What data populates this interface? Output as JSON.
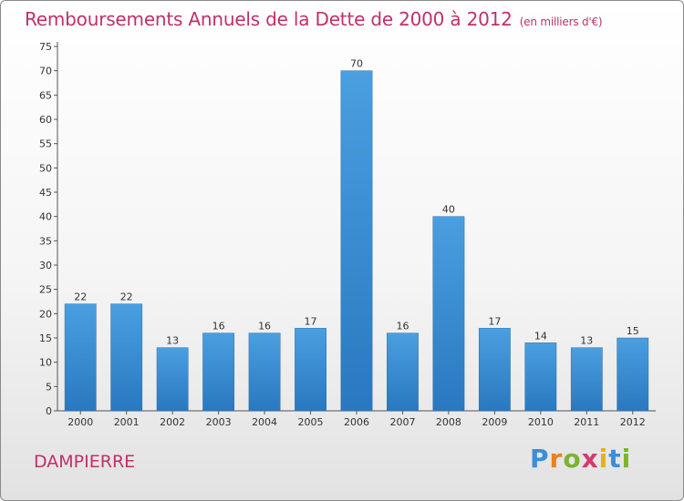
{
  "title": "Remboursements Annuels de la Dette de 2000 à 2012",
  "unit": "(en milliers d'€)",
  "commune": "DAMPIERRE",
  "logo": {
    "letters": [
      "P",
      "r",
      "o",
      "x",
      "i",
      "t",
      "i"
    ],
    "colors": [
      "#3a8fd8",
      "#e8801e",
      "#7cb32e",
      "#d43a6a",
      "#e0b31e",
      "#3a8fd8",
      "#7cb32e"
    ]
  },
  "chart_data": {
    "type": "bar",
    "title": "Remboursements Annuels de la Dette de 2000 à 2012",
    "xlabel": "",
    "ylabel": "",
    "categories": [
      "2000",
      "2001",
      "2002",
      "2003",
      "2004",
      "2005",
      "2006",
      "2007",
      "2008",
      "2009",
      "2010",
      "2011",
      "2012"
    ],
    "values": [
      22,
      22,
      13,
      16,
      16,
      17,
      70,
      16,
      40,
      17,
      14,
      13,
      15
    ],
    "ylim": [
      0,
      75
    ],
    "yticks": [
      0,
      5,
      10,
      15,
      20,
      25,
      30,
      35,
      40,
      45,
      50,
      55,
      60,
      65,
      70,
      75
    ],
    "grid": false,
    "bar_color": "#4a9fe0",
    "bar_color_dark": "#2a78c0"
  }
}
